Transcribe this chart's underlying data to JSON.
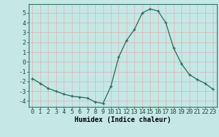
{
  "x": [
    0,
    1,
    2,
    3,
    4,
    5,
    6,
    7,
    8,
    9,
    10,
    11,
    12,
    13,
    14,
    15,
    16,
    17,
    18,
    19,
    20,
    21,
    22,
    23
  ],
  "y": [
    -1.7,
    -2.2,
    -2.7,
    -3.0,
    -3.3,
    -3.5,
    -3.6,
    -3.7,
    -4.1,
    -4.25,
    -2.5,
    0.5,
    2.2,
    3.3,
    5.0,
    5.4,
    5.2,
    4.0,
    1.4,
    -0.2,
    -1.3,
    -1.8,
    -2.2,
    -2.8
  ],
  "xlabel": "Humidex (Indice chaleur)",
  "ylim": [
    -4.6,
    5.9
  ],
  "xlim": [
    -0.5,
    23.5
  ],
  "yticks": [
    -4,
    -3,
    -2,
    -1,
    0,
    1,
    2,
    3,
    4,
    5
  ],
  "xticks": [
    0,
    1,
    2,
    3,
    4,
    5,
    6,
    7,
    8,
    9,
    10,
    11,
    12,
    13,
    14,
    15,
    16,
    17,
    18,
    19,
    20,
    21,
    22,
    23
  ],
  "line_color": "#2d6e5e",
  "marker": "+",
  "bg_color": "#c5e8e5",
  "grid_color": "#d8b8b8",
  "xlabel_fontsize": 7,
  "tick_fontsize": 6.5
}
